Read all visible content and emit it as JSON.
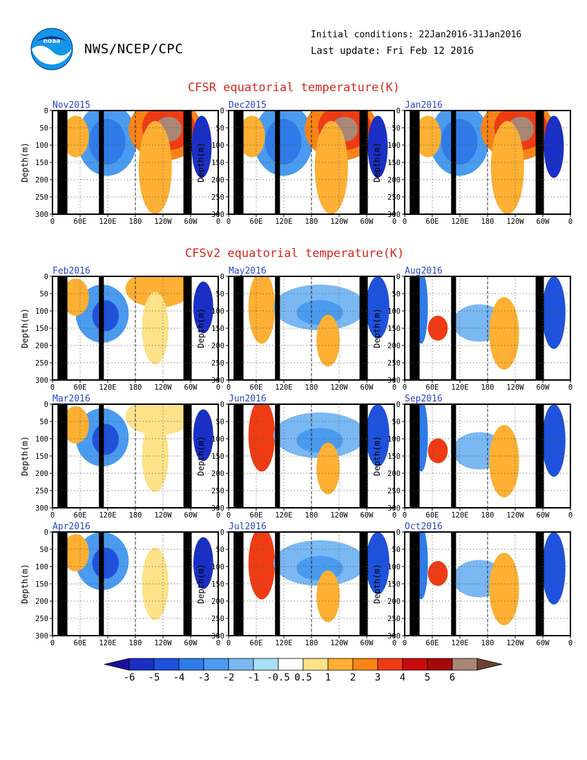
{
  "header": {
    "logo_text": "noaa",
    "org": "NWS/NCEP/CPC",
    "initial_conditions": "Initial conditions: 22Jan2016-31Jan2016",
    "last_update": "Last update: Fri Feb 12 2016"
  },
  "sections": {
    "cfsr_title": "CFSR equatorial temperature(K)",
    "cfsv2_title": "CFSv2 equatorial temperature(K)"
  },
  "chart_data": [
    {
      "type": "heatmap",
      "label": "Nov2015"
    },
    {
      "type": "heatmap",
      "label": "Dec2015"
    },
    {
      "type": "heatmap",
      "label": "Jan2016"
    },
    {
      "type": "heatmap",
      "label": "Feb2016"
    },
    {
      "type": "heatmap",
      "label": "May2016"
    },
    {
      "type": "heatmap",
      "label": "Aug2016"
    },
    {
      "type": "heatmap",
      "label": "Mar2016"
    },
    {
      "type": "heatmap",
      "label": "Jun2016"
    },
    {
      "type": "heatmap",
      "label": "Sep2016"
    },
    {
      "type": "heatmap",
      "label": "Apr2016"
    },
    {
      "type": "heatmap",
      "label": "Jul2016"
    },
    {
      "type": "heatmap",
      "label": "Oct2016"
    }
  ],
  "axes": {
    "ylabel": "Depth(m)",
    "yticks": [
      "0",
      "50",
      "100",
      "150",
      "200",
      "250",
      "300"
    ],
    "xticks": [
      "0",
      "60E",
      "120E",
      "180",
      "120W",
      "60W",
      "0"
    ],
    "ylim": [
      300,
      0
    ]
  },
  "colorbar": {
    "labels": [
      "-6",
      "-5",
      "-4",
      "-3",
      "-2",
      "-1",
      "-0.5",
      "0.5",
      "1",
      "2",
      "3",
      "4",
      "5",
      "6"
    ],
    "colors": [
      "#1e0f9a",
      "#1a2fc4",
      "#1f52dc",
      "#2f7be8",
      "#4a9bef",
      "#7ab8f3",
      "#a8e0f6",
      "#ffffff",
      "#fde28a",
      "#fdb033",
      "#f88417",
      "#ef3b14",
      "#c80b0b",
      "#a40a0a",
      "#a98777",
      "#6b4230"
    ]
  }
}
